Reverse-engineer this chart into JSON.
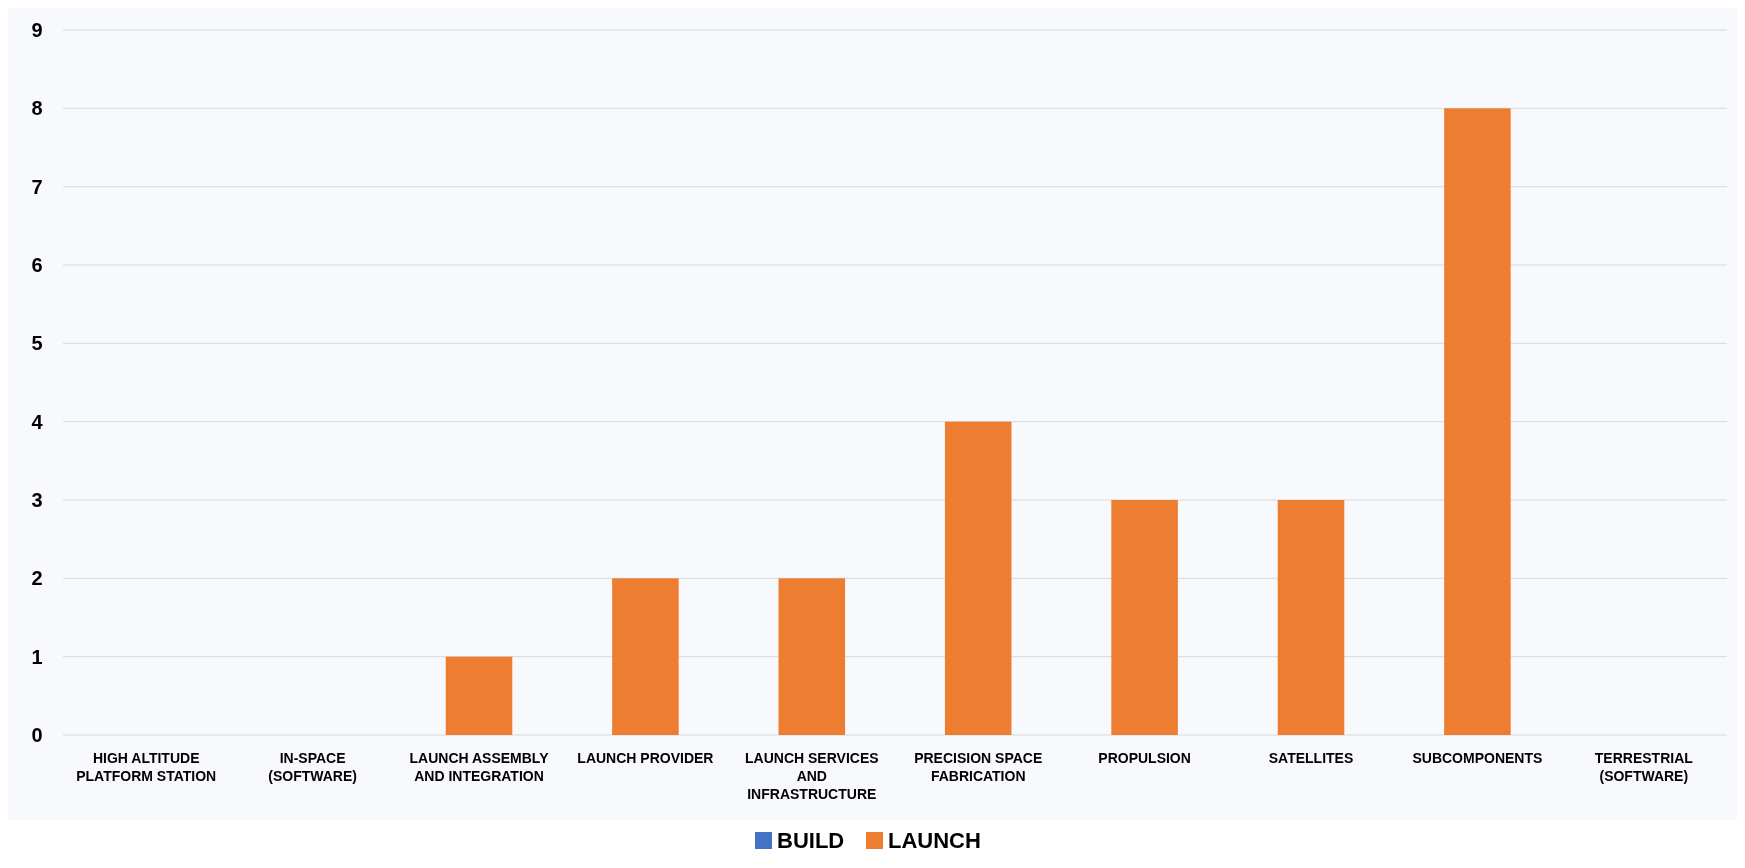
{
  "chart_data": {
    "type": "bar",
    "categories": [
      "HIGH ALTITUDE PLATFORM STATION",
      "IN-SPACE (SOFTWARE)",
      "LAUNCH ASSEMBLY AND INTEGRATION",
      "LAUNCH PROVIDER",
      "LAUNCH SERVICES AND INFRASTRUCTURE",
      "PRECISION SPACE FABRICATION",
      "PROPULSION",
      "SATELLITES",
      "SUBCOMPONENTS",
      "TERRESTRIAL (SOFTWARE)"
    ],
    "series": [
      {
        "name": "BUILD",
        "color": "#4472c4",
        "values": [
          0,
          0,
          0,
          0,
          0,
          0,
          0,
          0,
          0,
          0
        ]
      },
      {
        "name": "LAUNCH",
        "color": "#ed7d31",
        "values": [
          0,
          0,
          1,
          2,
          2,
          4,
          3,
          3,
          8,
          0
        ]
      }
    ],
    "ylim": [
      0,
      9
    ],
    "yticks": [
      0,
      1,
      2,
      3,
      4,
      5,
      6,
      7,
      8,
      9
    ],
    "grid": "y",
    "legend": "bottom"
  }
}
